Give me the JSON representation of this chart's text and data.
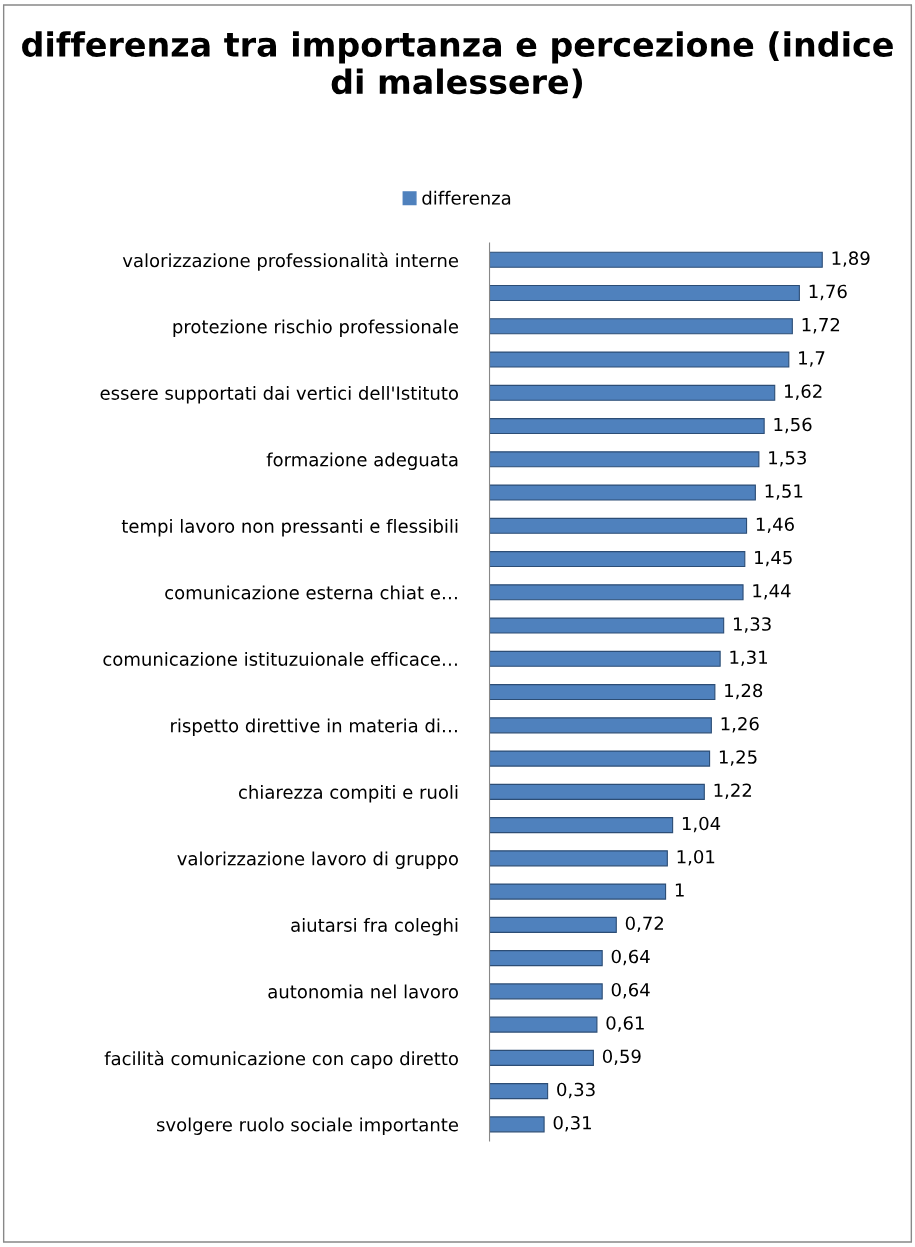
{
  "chart_data": {
    "type": "bar",
    "orientation": "horizontal",
    "title": "differenza tra importanza e percezione (indice di malessere)",
    "categories": [
      "valorizzazione professionalità interne",
      null,
      "protezione rischio professionale",
      null,
      "essere supportati dai vertici dell'Istituto",
      null,
      "formazione adeguata",
      null,
      "tempi lavoro non pressanti e flessibili",
      null,
      "comunicazione esterna chiat e…",
      null,
      "comunicazione istituzuionale efficace…",
      null,
      "rispetto direttive in materia di…",
      null,
      "chiarezza compiti e ruoli",
      null,
      "valorizzazione lavoro di gruppo",
      null,
      "aiutarsi fra coleghi",
      null,
      "autonomia nel lavoro",
      null,
      "facilità comunicazione con capo diretto",
      null,
      "svolgere ruolo sociale importante"
    ],
    "series": [
      {
        "name": "differenza",
        "color": "#4f81bd",
        "values": [
          1.89,
          1.76,
          1.72,
          1.7,
          1.62,
          1.56,
          1.53,
          1.51,
          1.46,
          1.45,
          1.44,
          1.33,
          1.31,
          1.28,
          1.26,
          1.25,
          1.22,
          1.04,
          1.01,
          1,
          0.72,
          0.64,
          0.64,
          0.61,
          0.59,
          0.33,
          0.31
        ],
        "value_labels": [
          "1,89",
          "1,76",
          "1,72",
          "1,7",
          "1,62",
          "1,56",
          "1,53",
          "1,51",
          "1,46",
          "1,45",
          "1,44",
          "1,33",
          "1,31",
          "1,28",
          "1,26",
          "1,25",
          "1,22",
          "1,04",
          "1,01",
          "1",
          "0,72",
          "0,64",
          "0,64",
          "0,61",
          "0,59",
          "0,33",
          "0,31"
        ]
      }
    ],
    "legend": "top",
    "grid": false
  }
}
